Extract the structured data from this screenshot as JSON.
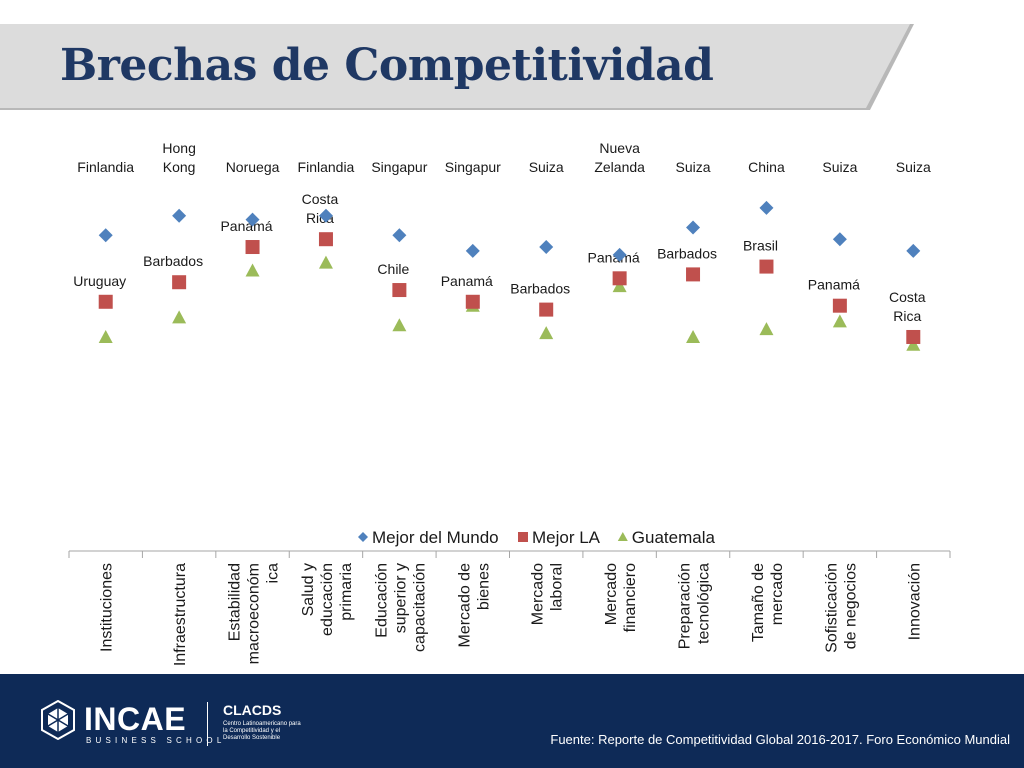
{
  "slide": {
    "title": "Brechas de Competitividad",
    "source": "Fuente: Reporte de Competitividad Global 2016-2017. Foro Económico Mundial"
  },
  "footer": {
    "brand": "INCAE",
    "brand_sub": "BUSINESS SCHOOL",
    "org": "CLACDS",
    "org_desc": "Centro Latinoamericano para la Competitividad y el Desarrollo Sostenible",
    "bg_color": "#0e2a57"
  },
  "chart_data": {
    "type": "scatter",
    "title": "",
    "categories": [
      "Instituciones",
      "Infraestructura",
      "Estabilidad macroeconómica",
      "Salud y educación primaria",
      "Educación superior y capacitación",
      "Mercado de bienes",
      "Mercado laboral",
      "Mercado financiero",
      "Preparación tecnológica",
      "Tamaño de mercado",
      "Sofisticación de negocios",
      "Innovación"
    ],
    "category_tick_lines": [
      [
        "Instituciones"
      ],
      [
        "Infraestructura"
      ],
      [
        "Estabilidad",
        "macroeconóm",
        "ica"
      ],
      [
        "Salud y",
        "educación",
        "primaria"
      ],
      [
        "Educación",
        "superior y",
        "capacitación"
      ],
      [
        "Mercado de",
        "bienes"
      ],
      [
        "Mercado",
        "laboral"
      ],
      [
        "Mercado",
        "financiero"
      ],
      [
        "Preparación",
        "tecnológica"
      ],
      [
        "Tamaño de",
        "mercado"
      ],
      [
        "Sofisticación",
        "de negocios"
      ],
      [
        "Innovación"
      ]
    ],
    "y_axis_visible": false,
    "ylim": [
      2.5,
      7
    ],
    "grid": false,
    "legend_position": "bottom",
    "series": [
      {
        "name": "Mejor del Mundo",
        "marker": "diamond",
        "color": "#4f81bd",
        "values": [
          6.2,
          6.7,
          6.6,
          6.7,
          6.2,
          5.8,
          5.9,
          5.7,
          6.4,
          6.9,
          6.1,
          5.8
        ],
        "point_labels": [
          "Finlandia",
          "Hong Kong",
          "Noruega",
          "Finlandia",
          "Singapur",
          "Singapur",
          "Suiza",
          "Nueva Zelanda",
          "Suiza",
          "China",
          "Suiza",
          "Suiza"
        ]
      },
      {
        "name": "Mejor LA",
        "marker": "square",
        "color": "#c0504d",
        "values": [
          4.5,
          5.0,
          5.9,
          6.1,
          4.8,
          4.5,
          4.3,
          5.1,
          5.2,
          5.4,
          4.4,
          3.6
        ],
        "point_labels": [
          "Uruguay",
          "Barbados",
          "Panamá",
          "Costa Rica",
          "Chile",
          "Panamá",
          "Barbados",
          "Panamá",
          "Barbados",
          "Brasil",
          "Panamá",
          "Costa Rica"
        ]
      },
      {
        "name": "Guatemala",
        "marker": "triangle",
        "color": "#9bbb59",
        "values": [
          3.6,
          4.1,
          5.3,
          5.5,
          3.9,
          4.4,
          3.7,
          4.9,
          3.6,
          3.8,
          4.0,
          3.4
        ]
      }
    ]
  }
}
